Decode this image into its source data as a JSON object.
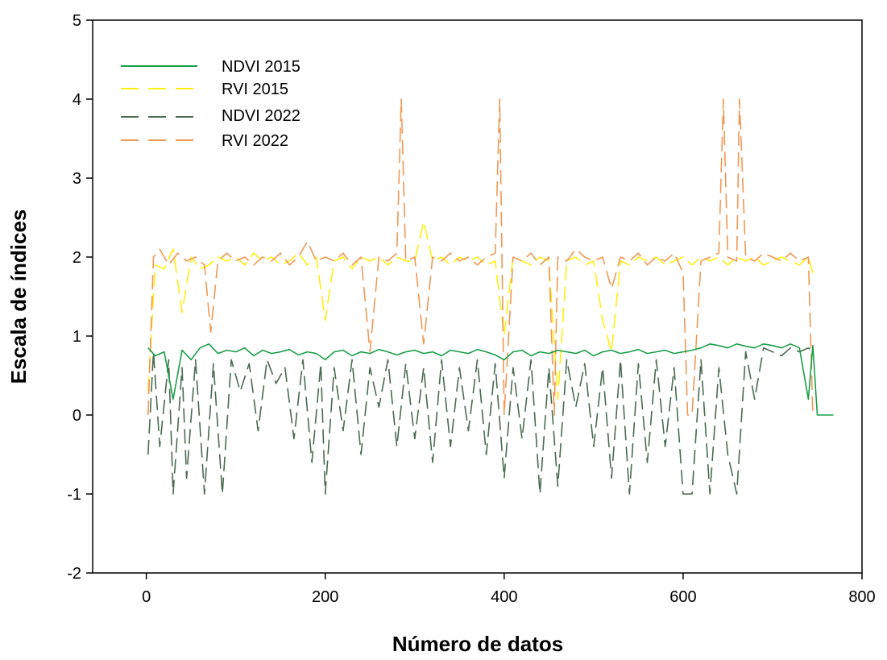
{
  "chart_data": {
    "type": "line",
    "title": "",
    "xlabel": "Número de datos",
    "ylabel": "Escala de índices",
    "xlim": [
      -60,
      800
    ],
    "ylim": [
      -2,
      5
    ],
    "xticks": [
      0,
      200,
      400,
      600,
      800
    ],
    "yticks": [
      -2,
      -1,
      0,
      1,
      2,
      3,
      4,
      5
    ],
    "grid": false,
    "legend_position": "top-left",
    "series": [
      {
        "name": "NDVI 2015",
        "color": "#1a9e4a",
        "dash": "solid",
        "x": [
          2,
          10,
          20,
          30,
          40,
          50,
          60,
          70,
          80,
          90,
          100,
          110,
          120,
          130,
          140,
          150,
          160,
          170,
          180,
          190,
          200,
          210,
          220,
          230,
          240,
          250,
          260,
          270,
          280,
          290,
          300,
          310,
          320,
          330,
          340,
          350,
          360,
          370,
          380,
          390,
          400,
          410,
          420,
          430,
          440,
          450,
          460,
          470,
          480,
          490,
          500,
          510,
          520,
          530,
          540,
          550,
          560,
          570,
          580,
          590,
          600,
          610,
          620,
          630,
          640,
          650,
          660,
          670,
          680,
          690,
          700,
          710,
          720,
          730,
          740,
          745,
          750,
          755,
          760,
          765,
          768
        ],
        "y": [
          0.85,
          0.75,
          0.8,
          0.2,
          0.82,
          0.7,
          0.85,
          0.9,
          0.78,
          0.82,
          0.8,
          0.85,
          0.75,
          0.82,
          0.78,
          0.8,
          0.83,
          0.76,
          0.8,
          0.78,
          0.7,
          0.8,
          0.82,
          0.75,
          0.8,
          0.78,
          0.83,
          0.8,
          0.76,
          0.8,
          0.82,
          0.78,
          0.8,
          0.75,
          0.82,
          0.8,
          0.78,
          0.83,
          0.8,
          0.76,
          0.7,
          0.8,
          0.82,
          0.75,
          0.8,
          0.78,
          0.82,
          0.8,
          0.78,
          0.82,
          0.75,
          0.8,
          0.82,
          0.78,
          0.8,
          0.83,
          0.78,
          0.8,
          0.82,
          0.78,
          0.8,
          0.82,
          0.85,
          0.9,
          0.88,
          0.85,
          0.9,
          0.87,
          0.85,
          0.9,
          0.88,
          0.85,
          0.9,
          0.85,
          0.2,
          0.88,
          0.0,
          0.0,
          0.0,
          0.0,
          0.0
        ]
      },
      {
        "name": "RVI 2015",
        "color": "#ffee11",
        "dash": "long-dash",
        "x": [
          2,
          10,
          20,
          30,
          40,
          50,
          60,
          70,
          80,
          90,
          100,
          110,
          120,
          130,
          140,
          150,
          160,
          170,
          180,
          190,
          200,
          210,
          220,
          230,
          240,
          250,
          260,
          270,
          280,
          290,
          300,
          310,
          320,
          330,
          340,
          350,
          360,
          370,
          380,
          390,
          400,
          410,
          420,
          430,
          440,
          450,
          460,
          470,
          480,
          490,
          500,
          510,
          520,
          530,
          540,
          550,
          560,
          570,
          580,
          590,
          600,
          610,
          620,
          630,
          640,
          650,
          660,
          670,
          680,
          690,
          700,
          710,
          720,
          730,
          740,
          745
        ],
        "y": [
          0.3,
          1.9,
          1.85,
          2.1,
          1.3,
          2.0,
          1.85,
          1.9,
          2.0,
          1.95,
          2.0,
          1.9,
          2.05,
          1.95,
          2.0,
          1.9,
          1.95,
          2.05,
          1.9,
          2.0,
          1.2,
          1.95,
          2.0,
          1.85,
          2.0,
          1.95,
          2.0,
          1.9,
          2.0,
          1.95,
          1.95,
          2.45,
          1.95,
          2.0,
          1.9,
          2.0,
          1.95,
          2.0,
          1.9,
          1.95,
          1.0,
          2.0,
          1.95,
          1.9,
          2.0,
          1.95,
          0.2,
          1.95,
          2.0,
          1.9,
          1.95,
          1.2,
          0.8,
          1.95,
          1.9,
          2.0,
          1.95,
          2.0,
          1.9,
          1.95,
          2.0,
          1.9,
          2.0,
          1.95,
          2.0,
          1.9,
          2.0,
          1.95,
          2.0,
          1.9,
          1.95,
          2.0,
          1.95,
          1.9,
          2.0,
          1.8
        ]
      },
      {
        "name": "NDVI 2022",
        "color": "#4a6a52",
        "dash": "long-dash",
        "x": [
          2,
          8,
          15,
          25,
          30,
          40,
          45,
          55,
          65,
          75,
          85,
          95,
          105,
          115,
          125,
          135,
          145,
          155,
          165,
          175,
          185,
          195,
          200,
          210,
          220,
          230,
          240,
          250,
          260,
          270,
          280,
          290,
          300,
          310,
          320,
          330,
          340,
          350,
          360,
          370,
          380,
          390,
          400,
          410,
          420,
          430,
          440,
          450,
          460,
          470,
          480,
          490,
          500,
          510,
          520,
          530,
          540,
          550,
          560,
          570,
          580,
          590,
          600,
          605,
          610,
          620,
          630,
          640,
          650,
          660,
          670,
          680,
          690,
          700,
          710,
          720,
          730,
          740,
          745
        ],
        "y": [
          -0.5,
          0.8,
          -0.4,
          0.7,
          -1.0,
          0.6,
          -0.8,
          0.7,
          -1.0,
          0.65,
          -1.0,
          0.7,
          0.3,
          0.65,
          -0.2,
          0.7,
          0.4,
          0.6,
          -0.3,
          0.7,
          -0.6,
          0.65,
          -1.0,
          0.6,
          -0.2,
          0.7,
          -0.5,
          0.6,
          0.1,
          0.7,
          -0.4,
          0.65,
          -0.3,
          0.6,
          -0.6,
          0.7,
          -0.4,
          0.6,
          -0.2,
          0.7,
          -0.5,
          0.65,
          -0.8,
          0.6,
          -0.3,
          0.7,
          -1.0,
          0.6,
          -0.9,
          0.7,
          0.1,
          0.65,
          -0.4,
          0.6,
          -0.8,
          0.7,
          -1.0,
          0.65,
          -0.6,
          0.7,
          -0.4,
          0.6,
          -1.0,
          -1.0,
          -1.0,
          0.7,
          -1.0,
          0.6,
          -0.5,
          -1.0,
          0.8,
          0.2,
          0.85,
          0.8,
          0.75,
          0.85,
          0.8,
          0.85,
          0.8
        ]
      },
      {
        "name": "RVI 2022",
        "color": "#ee9955",
        "dash": "long-dash",
        "x": [
          2,
          8,
          15,
          25,
          35,
          45,
          55,
          65,
          72,
          80,
          90,
          100,
          110,
          120,
          130,
          140,
          150,
          160,
          170,
          180,
          190,
          200,
          210,
          220,
          230,
          240,
          250,
          260,
          270,
          280,
          285,
          290,
          300,
          310,
          320,
          330,
          340,
          350,
          360,
          370,
          380,
          390,
          395,
          400,
          410,
          420,
          430,
          440,
          450,
          456,
          460,
          470,
          480,
          490,
          500,
          510,
          520,
          530,
          540,
          550,
          560,
          570,
          580,
          590,
          600,
          605,
          610,
          620,
          630,
          640,
          645,
          650,
          660,
          663,
          670,
          680,
          690,
          700,
          710,
          720,
          730,
          740,
          745
        ],
        "y": [
          0.0,
          2.0,
          2.1,
          1.9,
          2.05,
          1.95,
          2.0,
          1.9,
          1.05,
          1.95,
          2.05,
          1.95,
          2.0,
          1.9,
          2.0,
          1.95,
          2.05,
          1.9,
          2.0,
          2.2,
          1.95,
          2.0,
          1.95,
          2.05,
          1.9,
          2.0,
          0.8,
          2.0,
          1.95,
          2.05,
          4.0,
          1.95,
          2.0,
          0.9,
          2.0,
          1.95,
          2.05,
          1.95,
          2.0,
          1.9,
          2.0,
          2.05,
          4.0,
          0.0,
          2.0,
          1.95,
          2.05,
          1.9,
          2.0,
          0.0,
          2.0,
          1.95,
          2.1,
          2.0,
          1.95,
          2.0,
          1.6,
          2.0,
          1.95,
          2.05,
          1.9,
          2.0,
          1.95,
          2.05,
          1.8,
          0.0,
          0.0,
          1.95,
          2.0,
          2.05,
          4.0,
          2.0,
          1.95,
          4.0,
          2.0,
          1.95,
          2.05,
          2.0,
          1.95,
          2.05,
          1.95,
          2.0,
          0.0
        ]
      }
    ]
  }
}
